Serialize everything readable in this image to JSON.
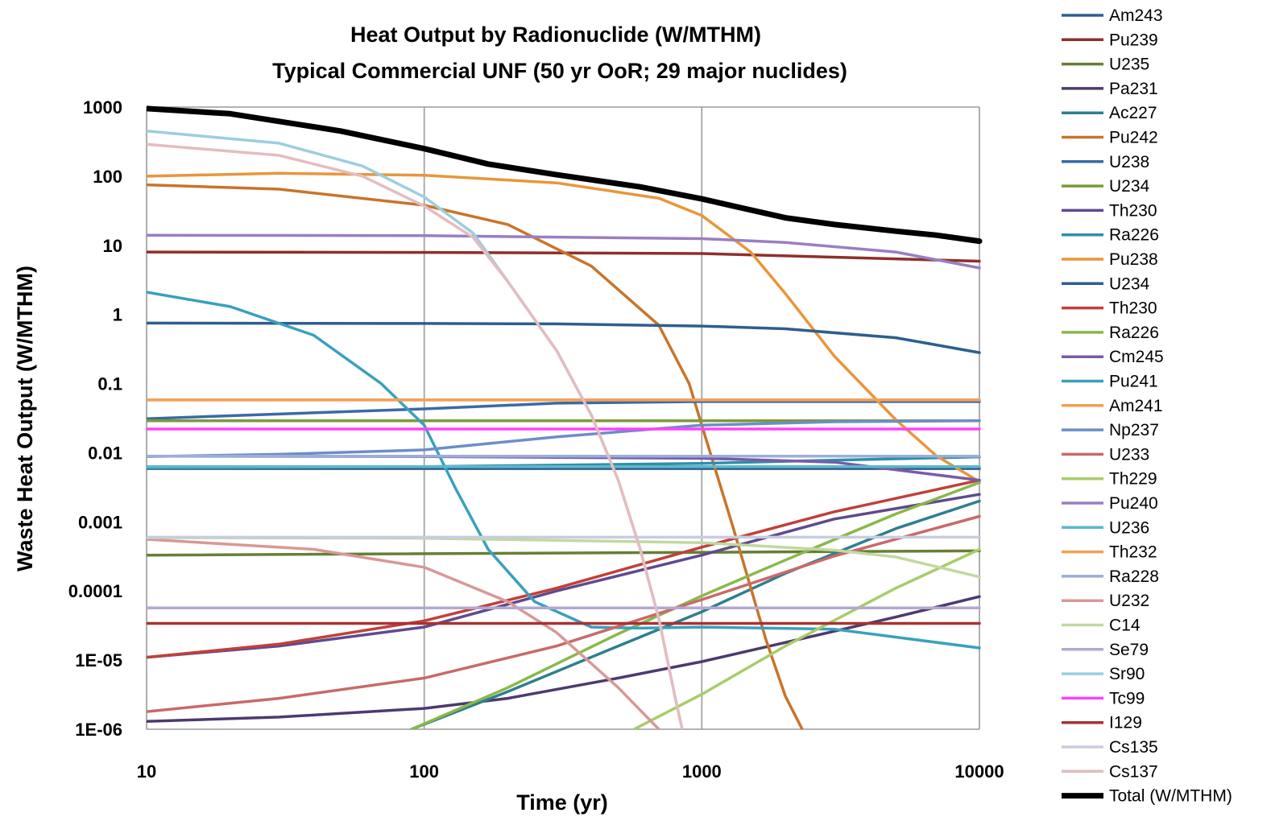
{
  "chart_data": {
    "type": "line",
    "title": "Heat Output by Radionuclide (W/MTHM)",
    "subtitle": "Typical Commercial UNF (50 yr OoR; 29 major nuclides)",
    "xlabel": "Time (yr)",
    "ylabel": "Waste Heat Output (W/MTHM)",
    "xscale": "log",
    "yscale": "log",
    "xlim": [
      10,
      10000
    ],
    "ylim": [
      1e-06,
      1000
    ],
    "x_ticks": [
      "10",
      "100",
      "1000",
      "10000"
    ],
    "y_ticks": [
      "1000",
      "100",
      "10",
      "1",
      "0.1",
      "0.01",
      "0.001",
      "0.0001",
      "1E-05",
      "1E-06"
    ],
    "grid": "vertical major lines",
    "legend_position": "right",
    "series": [
      {
        "name": "Am243",
        "color": "#2e5e8e",
        "x": [
          10,
          10000
        ],
        "y": [
          0.0059,
          0.0059
        ]
      },
      {
        "name": "Pu239",
        "color": "#8e2f2b",
        "x": [
          10,
          100,
          1000,
          10000
        ],
        "y": [
          8.0,
          7.9,
          7.6,
          5.9
        ]
      },
      {
        "name": "U235",
        "color": "#667f36",
        "x": [
          10,
          10000
        ],
        "y": [
          0.00033,
          0.00038
        ]
      },
      {
        "name": "Pa231",
        "color": "#4c3a70",
        "x": [
          10,
          30,
          100,
          200,
          500,
          1000,
          2000,
          5000,
          10000
        ],
        "y": [
          1.3e-06,
          1.5e-06,
          2e-06,
          2.8e-06,
          5.5e-06,
          9.5e-06,
          1.8e-05,
          4.2e-05,
          8.3e-05
        ]
      },
      {
        "name": "Ac227",
        "color": "#2e7f8e",
        "x": [
          90,
          200,
          500,
          1000,
          2000,
          5000,
          10000
        ],
        "y": [
          1e-06,
          3.5e-06,
          1.6e-05,
          5e-05,
          0.00018,
          0.0008,
          0.002
        ]
      },
      {
        "name": "Pu242",
        "color": "#c8742a",
        "x": [
          10,
          30,
          100,
          200,
          400,
          700,
          900,
          1000,
          1300,
          1700,
          2000,
          2300
        ],
        "y": [
          75,
          65,
          38,
          20,
          5,
          0.7,
          0.1,
          0.025,
          0.0008,
          2e-05,
          3e-06,
          1e-06
        ]
      },
      {
        "name": "U238",
        "color": "#3a6aa8",
        "x": [
          10,
          100,
          300,
          1000,
          10000
        ],
        "y": [
          0.031,
          0.043,
          0.052,
          0.055,
          0.055
        ]
      },
      {
        "name": "U234",
        "color": "#7a9a3a",
        "x": [
          10,
          10000
        ],
        "y": [
          0.029,
          0.029
        ]
      },
      {
        "name": "Th230",
        "color": "#5f4a8e",
        "x": [
          10,
          30,
          100,
          300,
          1000,
          3000,
          10000
        ],
        "y": [
          1.1e-05,
          1.6e-05,
          3e-05,
          0.0001,
          0.00033,
          0.0011,
          0.0025
        ]
      },
      {
        "name": "Ra226",
        "color": "#2e8fa8",
        "x": [
          10,
          100,
          300,
          1000,
          3000,
          10000
        ],
        "y": [
          0.006,
          0.0063,
          0.0066,
          0.007,
          0.0078,
          0.0087
        ]
      },
      {
        "name": "Pu238",
        "color": "#e8963a",
        "x": [
          10,
          30,
          100,
          300,
          700,
          1000,
          1500,
          2000,
          3000,
          5000,
          7000,
          10000
        ],
        "y": [
          100,
          110,
          103,
          80,
          48,
          27,
          8,
          2,
          0.25,
          0.03,
          0.009,
          0.0038
        ]
      },
      {
        "name": "U234",
        "color": "#2e5e8e",
        "x": [
          10,
          100,
          300,
          1000,
          2000,
          5000,
          10000
        ],
        "y": [
          0.75,
          0.74,
          0.73,
          0.68,
          0.62,
          0.46,
          0.28
        ]
      },
      {
        "name": "Th230",
        "color": "#c0403a",
        "x": [
          10,
          30,
          100,
          300,
          1000,
          3000,
          10000
        ],
        "y": [
          1.1e-05,
          1.7e-05,
          3.7e-05,
          0.00011,
          0.00043,
          0.0014,
          0.004
        ]
      },
      {
        "name": "Ra226",
        "color": "#8ab84a",
        "x": [
          90,
          200,
          500,
          1000,
          2000,
          5000,
          10000
        ],
        "y": [
          1e-06,
          4e-06,
          2.4e-05,
          8.5e-05,
          0.00028,
          0.0013,
          0.0037
        ]
      },
      {
        "name": "Cm245",
        "color": "#7a5aa8",
        "x": [
          10,
          100,
          1000,
          3000,
          10000
        ],
        "y": [
          0.0089,
          0.0088,
          0.0083,
          0.0073,
          0.004
        ]
      },
      {
        "name": "Pu241",
        "color": "#3aa0be",
        "x": [
          10,
          20,
          40,
          70,
          100,
          130,
          170,
          250,
          400,
          600,
          1000,
          3000,
          10000
        ],
        "y": [
          2.1,
          1.3,
          0.5,
          0.1,
          0.025,
          0.003,
          0.0004,
          7e-05,
          3e-05,
          2.9e-05,
          3e-05,
          2.8e-05,
          1.5e-05
        ]
      },
      {
        "name": "Am241",
        "color": "#f0a050",
        "x": [
          10,
          10000
        ],
        "y": [
          0.058,
          0.058
        ]
      },
      {
        "name": "Np237",
        "color": "#6c8ec8",
        "x": [
          10,
          30,
          100,
          300,
          1000,
          3000,
          10000
        ],
        "y": [
          0.0088,
          0.0095,
          0.011,
          0.017,
          0.025,
          0.028,
          0.029
        ]
      },
      {
        "name": "U233",
        "color": "#c86a6a",
        "x": [
          10,
          30,
          100,
          300,
          1000,
          3000,
          10000
        ],
        "y": [
          1.8e-06,
          2.8e-06,
          5.5e-06,
          1.6e-05,
          7.5e-05,
          0.00032,
          0.0012
        ]
      },
      {
        "name": "Th229",
        "color": "#a8cc6a",
        "x": [
          570,
          1000,
          2000,
          5000,
          10000
        ],
        "y": [
          1e-06,
          3.2e-06,
          1.6e-05,
          0.00011,
          0.0004
        ]
      },
      {
        "name": "Pu240",
        "color": "#9a7ec2",
        "x": [
          10,
          100,
          1000,
          2000,
          5000,
          10000
        ],
        "y": [
          14,
          13.8,
          12.5,
          11,
          8,
          4.7
        ]
      },
      {
        "name": "U236",
        "color": "#5cb8cc",
        "x": [
          10,
          10000
        ],
        "y": [
          0.0063,
          0.0063
        ]
      },
      {
        "name": "Th232",
        "color": "#f0a05a",
        "x": [
          10,
          10000
        ],
        "y": [
          0.058,
          0.058
        ]
      },
      {
        "name": "Ra228",
        "color": "#9aaed8",
        "x": [
          10,
          10000
        ],
        "y": [
          0.0089,
          0.0089
        ]
      },
      {
        "name": "U232",
        "color": "#d89898",
        "x": [
          10,
          40,
          100,
          200,
          300,
          500,
          700
        ],
        "y": [
          0.00056,
          0.0004,
          0.00022,
          7e-05,
          2.5e-05,
          4e-06,
          1e-06
        ]
      },
      {
        "name": "C14",
        "color": "#c2d8a2",
        "x": [
          10,
          100,
          1000,
          3000,
          5000,
          10000
        ],
        "y": [
          0.00059,
          0.00058,
          0.0005,
          0.00039,
          0.00031,
          0.00016
        ]
      },
      {
        "name": "Se79",
        "color": "#b4a8d0",
        "x": [
          10,
          10000
        ],
        "y": [
          5.7e-05,
          5.7e-05
        ]
      },
      {
        "name": "Sr90",
        "color": "#9ccede",
        "x": [
          10,
          30,
          60,
          100,
          150,
          200,
          300,
          400,
          500,
          600,
          700,
          800,
          850
        ],
        "y": [
          450,
          300,
          140,
          50,
          15,
          3,
          0.3,
          0.035,
          0.004,
          0.0004,
          4e-05,
          3e-06,
          1e-06
        ]
      },
      {
        "name": "Tc99",
        "color": "#ff40ff",
        "x": [
          10,
          10000
        ],
        "y": [
          0.022,
          0.022
        ]
      },
      {
        "name": "I129",
        "color": "#a83232",
        "x": [
          10,
          10000
        ],
        "y": [
          3.4e-05,
          3.4e-05
        ]
      },
      {
        "name": "Cs135",
        "color": "#c8cce0",
        "x": [
          10,
          10000
        ],
        "y": [
          0.0006,
          0.0006
        ]
      },
      {
        "name": "Cs137",
        "color": "#e4bcc0",
        "x": [
          10,
          30,
          60,
          100,
          150,
          200,
          300,
          400,
          500,
          600,
          700,
          800,
          850
        ],
        "y": [
          290,
          200,
          100,
          37,
          13,
          3,
          0.3,
          0.035,
          0.004,
          0.0004,
          4e-05,
          3e-06,
          1e-06
        ]
      },
      {
        "name": "Total (W/MTHM)",
        "color": "#000000",
        "x": [
          10,
          20,
          50,
          100,
          170,
          300,
          600,
          1000,
          2000,
          3000,
          5000,
          7000,
          10000
        ],
        "y": [
          950,
          800,
          450,
          250,
          150,
          105,
          70,
          47,
          25,
          20,
          16,
          14,
          11.5
        ]
      }
    ]
  }
}
